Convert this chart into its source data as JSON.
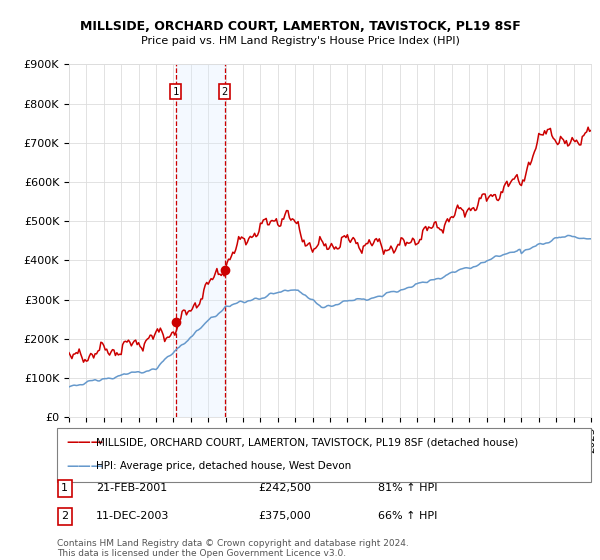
{
  "title": "MILLSIDE, ORCHARD COURT, LAMERTON, TAVISTOCK, PL19 8SF",
  "subtitle": "Price paid vs. HM Land Registry's House Price Index (HPI)",
  "ylabel_ticks": [
    "£0",
    "£100K",
    "£200K",
    "£300K",
    "£400K",
    "£500K",
    "£600K",
    "£700K",
    "£800K",
    "£900K"
  ],
  "ytick_vals": [
    0,
    100000,
    200000,
    300000,
    400000,
    500000,
    600000,
    700000,
    800000,
    900000
  ],
  "ylim": [
    0,
    900000
  ],
  "sale1_date": "21-FEB-2001",
  "sale1_price": 242500,
  "sale1_hpi": "81% ↑ HPI",
  "sale1_x": 2001.13,
  "sale2_date": "11-DEC-2003",
  "sale2_price": 375000,
  "sale2_hpi": "66% ↑ HPI",
  "sale2_x": 2003.95,
  "legend_line1": "MILLSIDE, ORCHARD COURT, LAMERTON, TAVISTOCK, PL19 8SF (detached house)",
  "legend_line2": "HPI: Average price, detached house, West Devon",
  "footnote": "Contains HM Land Registry data © Crown copyright and database right 2024.\nThis data is licensed under the Open Government Licence v3.0.",
  "red_color": "#cc0000",
  "blue_color": "#6699cc",
  "highlight_color": "#ddeeff",
  "background_color": "#ffffff",
  "grid_color": "#dddddd"
}
